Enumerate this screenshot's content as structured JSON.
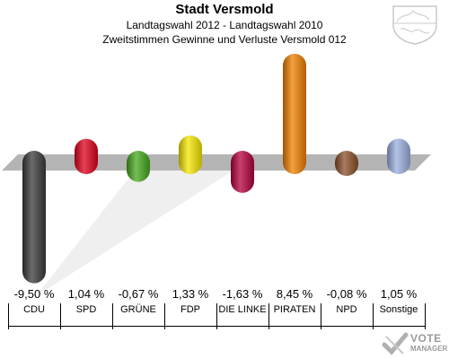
{
  "header": {
    "title": "Stadt Versmold",
    "subtitle1": "Landtagswahl 2012 - Landtagswahl 2010",
    "subtitle2": "Zweitstimmen Gewinne und Verluste Versmold 012"
  },
  "logo": {
    "line1": "VOTE",
    "line2": "MANAGER"
  },
  "crest": {
    "icon": "nrw-coat-of-arms-icon"
  },
  "chart_data": {
    "type": "bar",
    "categories": [
      "CDU",
      "SPD",
      "GRÜNE",
      "FDP",
      "DIE LINKE",
      "PIRATEN",
      "NPD",
      "Sonstige"
    ],
    "values": [
      -9.5,
      1.04,
      -0.67,
      1.33,
      -1.63,
      8.45,
      -0.08,
      1.05
    ],
    "value_labels": [
      "-9,50 %",
      "1,04 %",
      "-0,67 %",
      "1,33 %",
      "-1,63 %",
      "8,45 %",
      "-0,08 %",
      "1,05 %"
    ],
    "colors": [
      "#3a3a3a",
      "#e0001b",
      "#46a81e",
      "#f5e600",
      "#b5003c",
      "#f08000",
      "#8b4f2a",
      "#9ab0e0"
    ],
    "grid": false,
    "legend": "none"
  }
}
